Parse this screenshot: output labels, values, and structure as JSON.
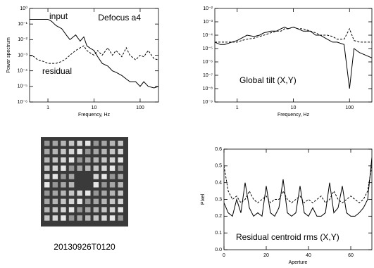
{
  "chart_data": [
    {
      "type": "line",
      "title": "Defocus a4",
      "xlabel": "Frequency, Hz",
      "ylabel": "Power spectrum",
      "xlog": true,
      "ylog": true,
      "xlim": [
        0.4,
        250
      ],
      "ylim": [
        1e-06,
        1
      ],
      "xticks": [
        1,
        10,
        100
      ],
      "yticks": [
        {
          "value": 1e-06,
          "label": "10⁻⁶"
        },
        {
          "value": 1e-05,
          "label": "10⁻⁵"
        },
        {
          "value": 0.0001,
          "label": "10⁻⁴"
        },
        {
          "value": 0.001,
          "label": "10⁻³"
        },
        {
          "value": 0.01,
          "label": "10⁻²"
        },
        {
          "value": 0.1,
          "label": "10⁻¹"
        },
        {
          "value": 1,
          "label": "10⁰"
        }
      ],
      "x": [
        0.4,
        0.5,
        0.6,
        0.8,
        1,
        1.2,
        1.5,
        2,
        2.5,
        3,
        4,
        5,
        6,
        7,
        8,
        10,
        12,
        15,
        20,
        25,
        30,
        40,
        50,
        60,
        80,
        100,
        120,
        150,
        200,
        250
      ],
      "series": [
        {
          "name": "input",
          "color": "#000000",
          "style": "solid",
          "values": [
            0.2,
            0.2,
            0.2,
            0.2,
            0.2,
            0.15,
            0.08,
            0.05,
            0.02,
            0.01,
            0.02,
            0.008,
            0.015,
            0.004,
            0.003,
            0.002,
            0.0008,
            0.0003,
            0.0002,
            0.0001,
            8e-05,
            5e-05,
            3e-05,
            2e-05,
            2e-05,
            1e-05,
            2e-05,
            1e-05,
            8e-06,
            1e-05
          ]
        },
        {
          "name": "residual",
          "color": "#000000",
          "style": "dashed",
          "values": [
            0.001,
            0.0008,
            0.0005,
            0.0004,
            0.0003,
            0.0003,
            0.0003,
            0.0004,
            0.0006,
            0.001,
            0.002,
            0.003,
            0.004,
            0.002,
            0.0015,
            0.001,
            0.002,
            0.001,
            0.003,
            0.001,
            0.002,
            0.0008,
            0.003,
            0.001,
            0.0005,
            0.001,
            0.0008,
            0.002,
            0.0006,
            0.0005
          ]
        }
      ]
    },
    {
      "type": "line",
      "title": "Global tilt (X,Y)",
      "xlabel": "Frequency, Hz",
      "xlog": true,
      "ylog": true,
      "xlim": [
        0.4,
        250
      ],
      "ylim": [
        1e-09,
        0.01
      ],
      "xticks": [
        1,
        10,
        100
      ],
      "yticks": [
        {
          "value": 1e-09,
          "label": "10⁻⁹"
        },
        {
          "value": 1e-08,
          "label": "10⁻⁸"
        },
        {
          "value": 1e-07,
          "label": "10⁻⁷"
        },
        {
          "value": 1e-06,
          "label": "10⁻⁶"
        },
        {
          "value": 1e-05,
          "label": "10⁻⁵"
        },
        {
          "value": 0.0001,
          "label": "10⁻⁴"
        },
        {
          "value": 0.001,
          "label": "10⁻³"
        },
        {
          "value": 0.01,
          "label": "10⁻²"
        }
      ],
      "x": [
        0.4,
        0.5,
        0.6,
        0.8,
        1,
        1.2,
        1.5,
        2,
        2.5,
        3,
        4,
        5,
        6,
        7,
        8,
        10,
        12,
        15,
        20,
        25,
        30,
        40,
        50,
        60,
        80,
        100,
        120,
        150,
        200,
        250
      ],
      "series": [
        {
          "color": "#000000",
          "style": "solid",
          "values": [
            3e-05,
            2e-05,
            2e-05,
            3e-05,
            4e-05,
            6e-05,
            0.0001,
            8e-05,
            0.0001,
            0.00015,
            0.0002,
            0.0002,
            0.0003,
            0.0004,
            0.0003,
            0.0004,
            0.0003,
            0.0002,
            0.0002,
            0.0001,
            0.0001,
            5e-05,
            3e-05,
            3e-05,
            2e-05,
            1e-08,
            1e-05,
            5e-06,
            3e-06,
            2e-06
          ]
        },
        {
          "color": "#000000",
          "style": "dashed",
          "values": [
            3e-05,
            3e-05,
            3e-05,
            3e-05,
            3e-05,
            4e-05,
            5e-05,
            6e-05,
            8e-05,
            0.0001,
            0.00015,
            0.0002,
            0.0002,
            0.0003,
            0.0003,
            0.0004,
            0.0003,
            0.0003,
            0.0002,
            0.00015,
            0.0001,
            0.0001,
            8e-05,
            5e-05,
            5e-05,
            0.0003,
            4e-05,
            3e-05,
            3e-05,
            3e-05
          ]
        }
      ]
    },
    {
      "type": "line",
      "title": "Residual centroid rms (X,Y)",
      "xlabel": "Aperture",
      "ylabel": "Pixel",
      "xlim": [
        0,
        70
      ],
      "ylim": [
        0,
        0.6
      ],
      "xticks": [
        0,
        20,
        40,
        60
      ],
      "yticks": [
        {
          "value": 0,
          "label": "0.0"
        },
        0.1,
        0.2,
        0.3,
        0.4,
        0.5,
        0.6
      ],
      "x": [
        0,
        2,
        4,
        6,
        8,
        10,
        12,
        14,
        16,
        18,
        20,
        22,
        24,
        26,
        28,
        30,
        32,
        34,
        36,
        38,
        40,
        42,
        44,
        46,
        48,
        50,
        52,
        54,
        56,
        58,
        60,
        62,
        64,
        66,
        68,
        70
      ],
      "series": [
        {
          "color": "#000000",
          "style": "solid",
          "values": [
            0.28,
            0.22,
            0.2,
            0.3,
            0.22,
            0.4,
            0.25,
            0.2,
            0.22,
            0.2,
            0.38,
            0.22,
            0.2,
            0.25,
            0.42,
            0.22,
            0.2,
            0.22,
            0.38,
            0.22,
            0.2,
            0.25,
            0.2,
            0.2,
            0.22,
            0.4,
            0.22,
            0.25,
            0.38,
            0.22,
            0.2,
            0.2,
            0.22,
            0.25,
            0.3,
            0.55
          ]
        },
        {
          "color": "#000000",
          "style": "dashed",
          "values": [
            0.5,
            0.35,
            0.3,
            0.32,
            0.28,
            0.3,
            0.35,
            0.3,
            0.28,
            0.3,
            0.32,
            0.28,
            0.3,
            0.3,
            0.35,
            0.3,
            0.28,
            0.3,
            0.32,
            0.28,
            0.3,
            0.28,
            0.3,
            0.32,
            0.28,
            0.3,
            0.35,
            0.3,
            0.28,
            0.3,
            0.32,
            0.3,
            0.28,
            0.3,
            0.35,
            0.5
          ]
        }
      ]
    }
  ],
  "image": {
    "caption": "20130926T0120"
  }
}
